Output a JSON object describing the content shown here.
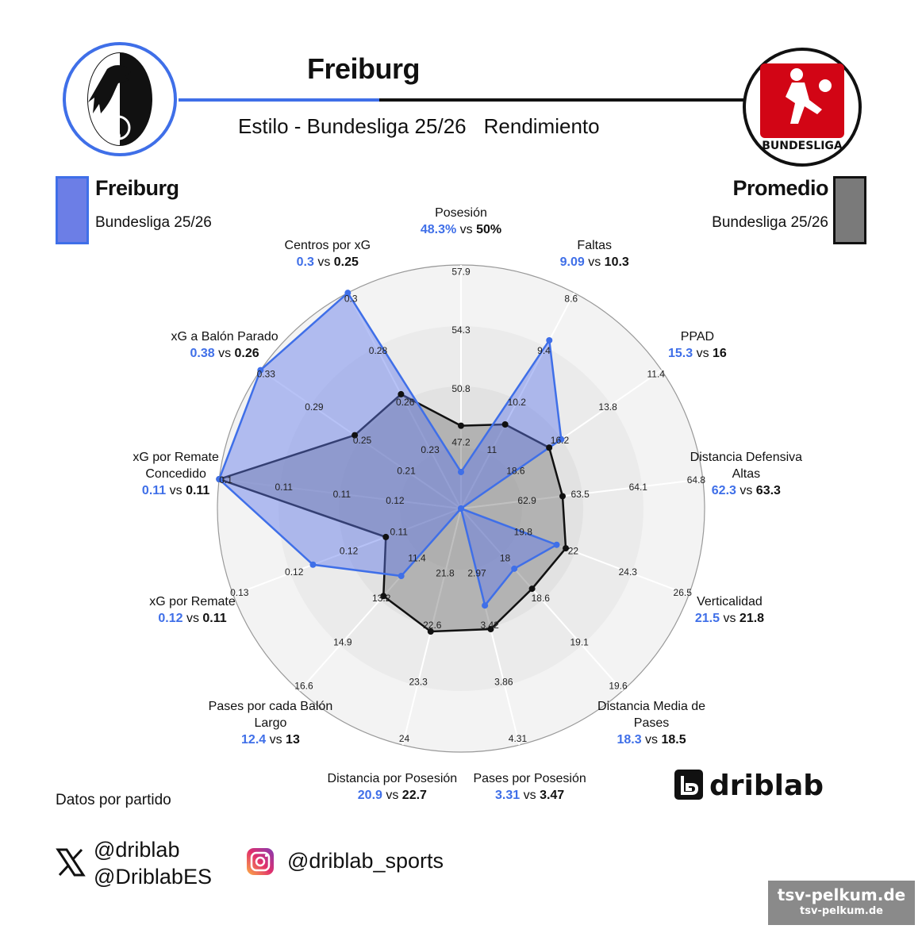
{
  "header": {
    "title": "Freiburg",
    "subtitle_left": "Estilo - Bundesliga 25/26",
    "subtitle_right": "Rendimiento"
  },
  "legend": {
    "team_name": "Freiburg",
    "team_league": "Bundesliga 25/26",
    "team_color": "#3f6fe8",
    "avg_name": "Promedio",
    "avg_league": "Bundesliga 25/26",
    "avg_color": "#111111"
  },
  "logos": {
    "left": "freiburg-crest",
    "right_text": "BUNDESLIGA"
  },
  "chart_data": {
    "type": "radar",
    "vs_word": "vs",
    "series": [
      {
        "name": "Freiburg",
        "color": "#3f6fe8"
      },
      {
        "name": "Promedio",
        "color": "#111111"
      }
    ],
    "axes": [
      {
        "label_lines": [
          "Posesión"
        ],
        "a": "48.3%",
        "b": "50%",
        "ticks": [
          "47.2",
          "50.8",
          "54.3",
          "57.9"
        ],
        "a_level": 0.15,
        "b_level": 0.34
      },
      {
        "label_lines": [
          "Faltas"
        ],
        "a": "9.09",
        "b": "10.3",
        "ticks": [
          "11",
          "10.2",
          "9.4",
          "8.6"
        ],
        "a_level": 0.78,
        "b_level": 0.39
      },
      {
        "label_lines": [
          "PPAD"
        ],
        "a": "15.3",
        "b": "16",
        "ticks": [
          "18.6",
          "16.2",
          "13.8",
          "11.4"
        ],
        "a_level": 0.5,
        "b_level": 0.44
      },
      {
        "label_lines": [
          "Distancia Defensiva",
          "Altas"
        ],
        "a": "62.3",
        "b": "63.3",
        "ticks": [
          "62.9",
          "63.5",
          "64.1",
          "64.8"
        ],
        "a_level": 0.0,
        "b_level": 0.42
      },
      {
        "label_lines": [
          "Verticalidad"
        ],
        "a": "21.5",
        "b": "21.8",
        "ticks": [
          "19.8",
          "22",
          "24.3",
          "26.5"
        ],
        "a_level": 0.42,
        "b_level": 0.46
      },
      {
        "label_lines": [
          "Distancia Media de",
          "Pases"
        ],
        "a": "18.3",
        "b": "18.5",
        "ticks": [
          "18",
          "18.6",
          "19.1",
          "19.6"
        ],
        "a_level": 0.33,
        "b_level": 0.44
      },
      {
        "label_lines": [
          "Pases por Posesión"
        ],
        "a": "3.31",
        "b": "3.47",
        "ticks": [
          "2.97",
          "3.42",
          "3.86",
          "4.31"
        ],
        "a_level": 0.41,
        "b_level": 0.51
      },
      {
        "label_lines": [
          "Distancia por Posesión"
        ],
        "a": "20.9",
        "b": "22.7",
        "ticks": [
          "21.8",
          "22.6",
          "23.3",
          "24"
        ],
        "a_level": 0.0,
        "b_level": 0.52
      },
      {
        "label_lines": [
          "Pases por cada Balón",
          "Largo"
        ],
        "a": "12.4",
        "b": "13",
        "ticks": [
          "11.4",
          "13.2",
          "14.9",
          "16.6"
        ],
        "a_level": 0.37,
        "b_level": 0.48
      },
      {
        "label_lines": [
          "xG por Remate"
        ],
        "a": "0.12",
        "b": "0.11",
        "ticks": [
          "0.11",
          "0.12",
          "0.12",
          "0.13"
        ],
        "a_level": 0.65,
        "b_level": 0.33
      },
      {
        "label_lines": [
          "xG por Remate",
          "Concedido"
        ],
        "a": "0.11",
        "b": "0.11",
        "ticks": [
          "0.12",
          "0.11",
          "0.11",
          "0.1"
        ],
        "a_level": 1.0,
        "b_level": 1.0
      },
      {
        "label_lines": [
          "xG a Balón Parado"
        ],
        "a": "0.38",
        "b": "0.26",
        "ticks": [
          "0.21",
          "0.25",
          "0.29",
          "0.33"
        ],
        "a_level": 1.0,
        "b_level": 0.53
      },
      {
        "label_lines": [
          "Centros por xG"
        ],
        "a": "0.3",
        "b": "0.25",
        "ticks": [
          "0.23",
          "0.26",
          "0.28",
          "0.3"
        ],
        "a_level": 1.0,
        "b_level": 0.53
      }
    ]
  },
  "footer": {
    "note": "Datos por partido",
    "twitter_handle_1": "@driblab",
    "twitter_handle_2": "@DriblabES",
    "instagram_handle": "@driblab_sports",
    "brand": "driblab",
    "watermark_1": "tsv-pelkum.de",
    "watermark_2": "tsv-pelkum.de"
  }
}
